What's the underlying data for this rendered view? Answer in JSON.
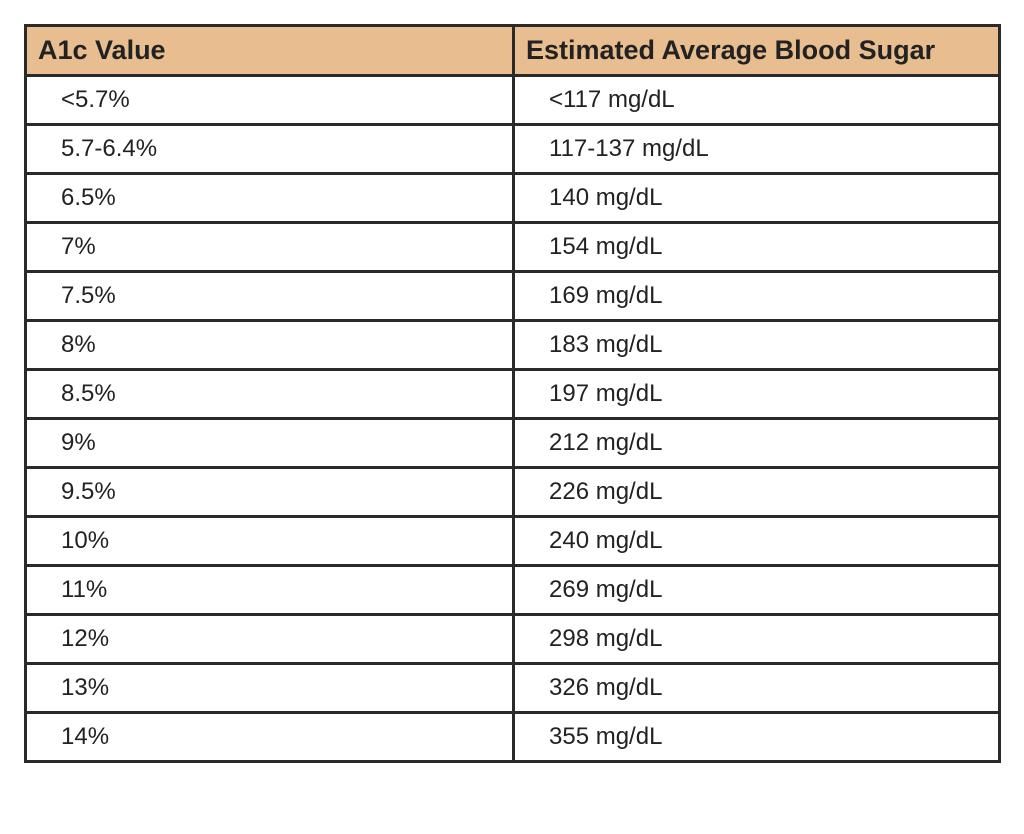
{
  "table": {
    "header": [
      "A1c Value",
      "Estimated Average Blood Sugar"
    ],
    "rows": [
      [
        "<5.7%",
        "<117 mg/dL"
      ],
      [
        "5.7-6.4%",
        "117-137 mg/dL"
      ],
      [
        "6.5%",
        "140 mg/dL"
      ],
      [
        "7%",
        "154 mg/dL"
      ],
      [
        "7.5%",
        "169 mg/dL"
      ],
      [
        "8%",
        "183 mg/dL"
      ],
      [
        "8.5%",
        "197 mg/dL"
      ],
      [
        "9%",
        "212 mg/dL"
      ],
      [
        "9.5%",
        "226 mg/dL"
      ],
      [
        "10%",
        "240 mg/dL"
      ],
      [
        "11%",
        "269 mg/dL"
      ],
      [
        "12%",
        "298 mg/dL"
      ],
      [
        "13%",
        "326 mg/dL"
      ],
      [
        "14%",
        "355 mg/dL"
      ]
    ]
  }
}
